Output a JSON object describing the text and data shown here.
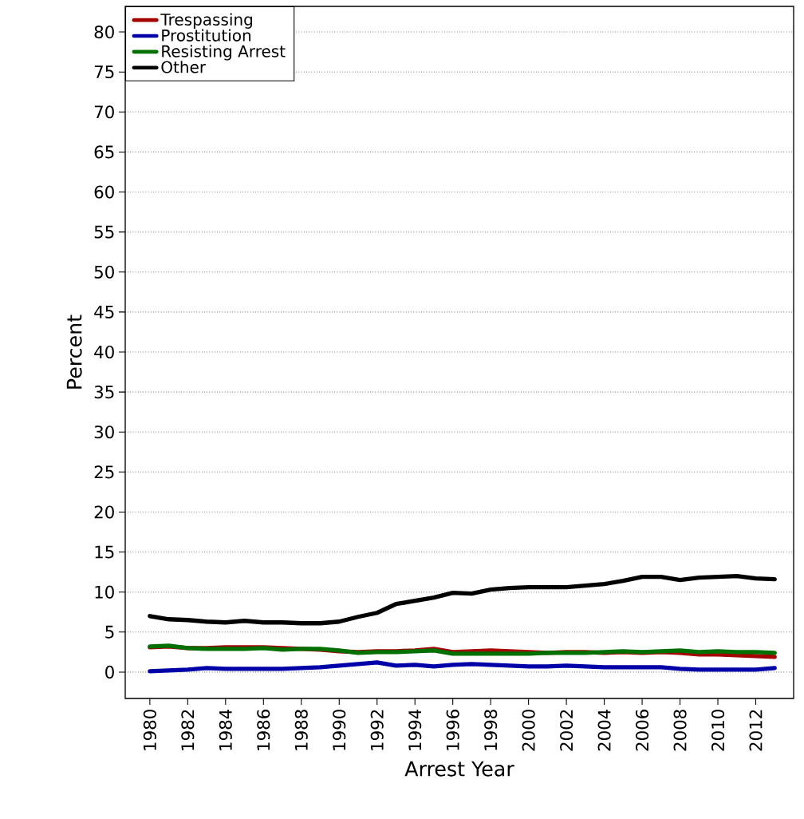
{
  "chart_data": {
    "type": "line",
    "xlabel": "Arrest Year",
    "ylabel": "Percent",
    "x": [
      1980,
      1981,
      1982,
      1983,
      1984,
      1985,
      1986,
      1987,
      1988,
      1989,
      1990,
      1991,
      1992,
      1993,
      1994,
      1995,
      1996,
      1997,
      1998,
      1999,
      2000,
      2001,
      2002,
      2003,
      2004,
      2005,
      2006,
      2007,
      2008,
      2009,
      2010,
      2011,
      2012,
      2013
    ],
    "series": [
      {
        "name": "Trespassing",
        "color": "#a50000",
        "values": [
          3.1,
          3.2,
          3.0,
          3.0,
          3.1,
          3.1,
          3.1,
          3.0,
          2.9,
          2.8,
          2.6,
          2.5,
          2.6,
          2.6,
          2.7,
          2.9,
          2.5,
          2.6,
          2.7,
          2.6,
          2.5,
          2.4,
          2.5,
          2.5,
          2.4,
          2.5,
          2.4,
          2.5,
          2.4,
          2.2,
          2.2,
          2.1,
          2.0,
          1.9
        ]
      },
      {
        "name": "Prostitution",
        "color": "#0000a8",
        "values": [
          0.1,
          0.2,
          0.3,
          0.5,
          0.4,
          0.4,
          0.4,
          0.4,
          0.5,
          0.6,
          0.8,
          1.0,
          1.2,
          0.8,
          0.9,
          0.7,
          0.9,
          1.0,
          0.9,
          0.8,
          0.7,
          0.7,
          0.8,
          0.7,
          0.6,
          0.6,
          0.6,
          0.6,
          0.4,
          0.3,
          0.3,
          0.3,
          0.3,
          0.5
        ]
      },
      {
        "name": "Resisting Arrest",
        "color": "#007000",
        "values": [
          3.2,
          3.3,
          3.0,
          2.9,
          2.9,
          2.9,
          3.0,
          2.8,
          2.9,
          2.9,
          2.7,
          2.4,
          2.5,
          2.5,
          2.6,
          2.7,
          2.3,
          2.3,
          2.3,
          2.3,
          2.3,
          2.4,
          2.4,
          2.4,
          2.5,
          2.6,
          2.5,
          2.6,
          2.7,
          2.5,
          2.6,
          2.5,
          2.5,
          2.4
        ]
      },
      {
        "name": "Other",
        "color": "#000000",
        "values": [
          7.0,
          6.6,
          6.5,
          6.3,
          6.2,
          6.4,
          6.2,
          6.2,
          6.1,
          6.1,
          6.3,
          6.9,
          7.4,
          8.5,
          8.9,
          9.3,
          9.9,
          9.8,
          10.3,
          10.5,
          10.6,
          10.6,
          10.6,
          10.8,
          11.0,
          11.4,
          11.9,
          11.9,
          11.5,
          11.8,
          11.9,
          12.0,
          11.7,
          11.6
        ]
      }
    ],
    "xlim": [
      1978.7,
      2014.0
    ],
    "ylim": [
      -3.3,
      83.2
    ],
    "xticks": [
      1980,
      1982,
      1984,
      1986,
      1988,
      1990,
      1992,
      1994,
      1996,
      1998,
      2000,
      2002,
      2004,
      2006,
      2008,
      2010,
      2012
    ],
    "yticks": [
      0,
      5,
      10,
      15,
      20,
      25,
      30,
      35,
      40,
      45,
      50,
      55,
      60,
      65,
      70,
      75,
      80
    ],
    "grid": "y",
    "legend": "top left",
    "marker": "none",
    "line_style": "solid"
  }
}
